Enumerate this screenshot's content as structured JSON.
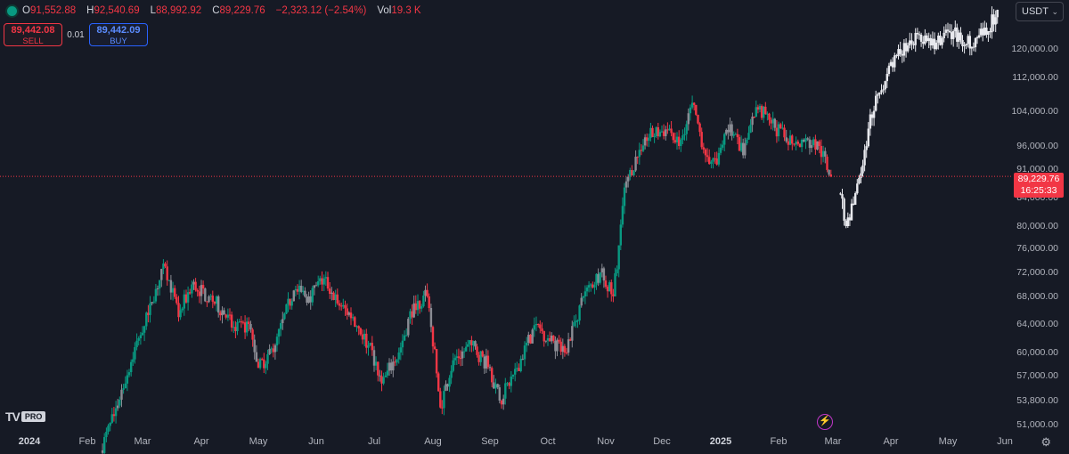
{
  "header": {
    "open_label": "O",
    "open": "91,552.88",
    "high_label": "H",
    "high": "92,540.69",
    "low_label": "L",
    "low": "88,992.92",
    "close_label": "C",
    "close": "89,229.76",
    "change": "−2,323.12 (−2.54%)",
    "vol_label": "Vol",
    "volume": "19.3 K"
  },
  "trade": {
    "sell_price": "89,442.08",
    "sell_label": "SELL",
    "spread": "0.01",
    "buy_price": "89,442.09",
    "buy_label": "BUY"
  },
  "currency_selector": {
    "value": "USDT"
  },
  "last_price": {
    "value": "89,229.76",
    "countdown": "16:25:33",
    "color": "#f23645"
  },
  "logo_text": "PRO",
  "colors": {
    "up": "#089981",
    "down": "#f23645",
    "projection": "#e8e9ee",
    "background": "#161a25"
  },
  "chart_data": {
    "type": "candlestick",
    "y_ticks": [
      "120,000.00",
      "112,000.00",
      "104,000.00",
      "96,000.00",
      "91,000.00",
      "84,000.00",
      "80,000.00",
      "76,000.00",
      "72,000.00",
      "68,000.00",
      "64,000.00",
      "60,000.00",
      "57,000.00",
      "53,800.00",
      "51,000.00"
    ],
    "x_ticks": [
      "2024",
      "Feb",
      "Mar",
      "Apr",
      "May",
      "Jun",
      "Jul",
      "Aug",
      "Sep",
      "Oct",
      "Nov",
      "Dec",
      "2025",
      "Feb",
      "Mar",
      "Apr",
      "May",
      "Jun"
    ],
    "last_price": 89229.76,
    "series": [
      {
        "name": "history",
        "points": [
          [
            "2024-02-08",
            48000
          ],
          [
            "2024-02-15",
            52000
          ],
          [
            "2024-02-28",
            62000
          ],
          [
            "2024-03-05",
            67000
          ],
          [
            "2024-03-13",
            73000
          ],
          [
            "2024-03-20",
            65000
          ],
          [
            "2024-03-27",
            70000
          ],
          [
            "2024-04-05",
            68000
          ],
          [
            "2024-04-12",
            66000
          ],
          [
            "2024-04-19",
            63000
          ],
          [
            "2024-04-26",
            64000
          ],
          [
            "2024-05-01",
            58000
          ],
          [
            "2024-05-10",
            61000
          ],
          [
            "2024-05-20",
            69000
          ],
          [
            "2024-05-28",
            68000
          ],
          [
            "2024-06-05",
            71000
          ],
          [
            "2024-06-12",
            67000
          ],
          [
            "2024-06-20",
            65000
          ],
          [
            "2024-06-28",
            61000
          ],
          [
            "2024-07-05",
            56000
          ],
          [
            "2024-07-14",
            60000
          ],
          [
            "2024-07-22",
            67000
          ],
          [
            "2024-07-29",
            68000
          ],
          [
            "2024-08-05",
            53000
          ],
          [
            "2024-08-12",
            59000
          ],
          [
            "2024-08-22",
            61000
          ],
          [
            "2024-09-01",
            58000
          ],
          [
            "2024-09-06",
            53800
          ],
          [
            "2024-09-15",
            58000
          ],
          [
            "2024-09-25",
            64000
          ],
          [
            "2024-10-01",
            62000
          ],
          [
            "2024-10-10",
            60000
          ],
          [
            "2024-10-20",
            68000
          ],
          [
            "2024-10-29",
            72000
          ],
          [
            "2024-11-05",
            68000
          ],
          [
            "2024-11-12",
            88000
          ],
          [
            "2024-11-22",
            98000
          ],
          [
            "2024-12-05",
            100000
          ],
          [
            "2024-12-10",
            96000
          ],
          [
            "2024-12-17",
            106000
          ],
          [
            "2024-12-24",
            94000
          ],
          [
            "2024-12-30",
            92000
          ],
          [
            "2025-01-06",
            101000
          ],
          [
            "2025-01-13",
            94000
          ],
          [
            "2025-01-20",
            105000
          ],
          [
            "2025-01-27",
            102000
          ],
          [
            "2025-02-04",
            98000
          ],
          [
            "2025-02-14",
            97000
          ],
          [
            "2025-02-22",
            96000
          ],
          [
            "2025-02-28",
            89229.76
          ]
        ]
      },
      {
        "name": "projection",
        "points": [
          [
            "2025-03-04",
            85000
          ],
          [
            "2025-03-08",
            80000
          ],
          [
            "2025-03-12",
            83000
          ],
          [
            "2025-03-16",
            90000
          ],
          [
            "2025-03-20",
            100000
          ],
          [
            "2025-03-25",
            108000
          ],
          [
            "2025-03-30",
            113000
          ],
          [
            "2025-04-04",
            118000
          ],
          [
            "2025-04-10",
            121000
          ],
          [
            "2025-04-16",
            124000
          ],
          [
            "2025-04-22",
            121000
          ],
          [
            "2025-04-28",
            123000
          ],
          [
            "2025-05-04",
            125000
          ],
          [
            "2025-05-10",
            121000
          ],
          [
            "2025-05-16",
            123000
          ],
          [
            "2025-05-22",
            124000
          ],
          [
            "2025-05-28",
            131000
          ]
        ]
      }
    ]
  }
}
